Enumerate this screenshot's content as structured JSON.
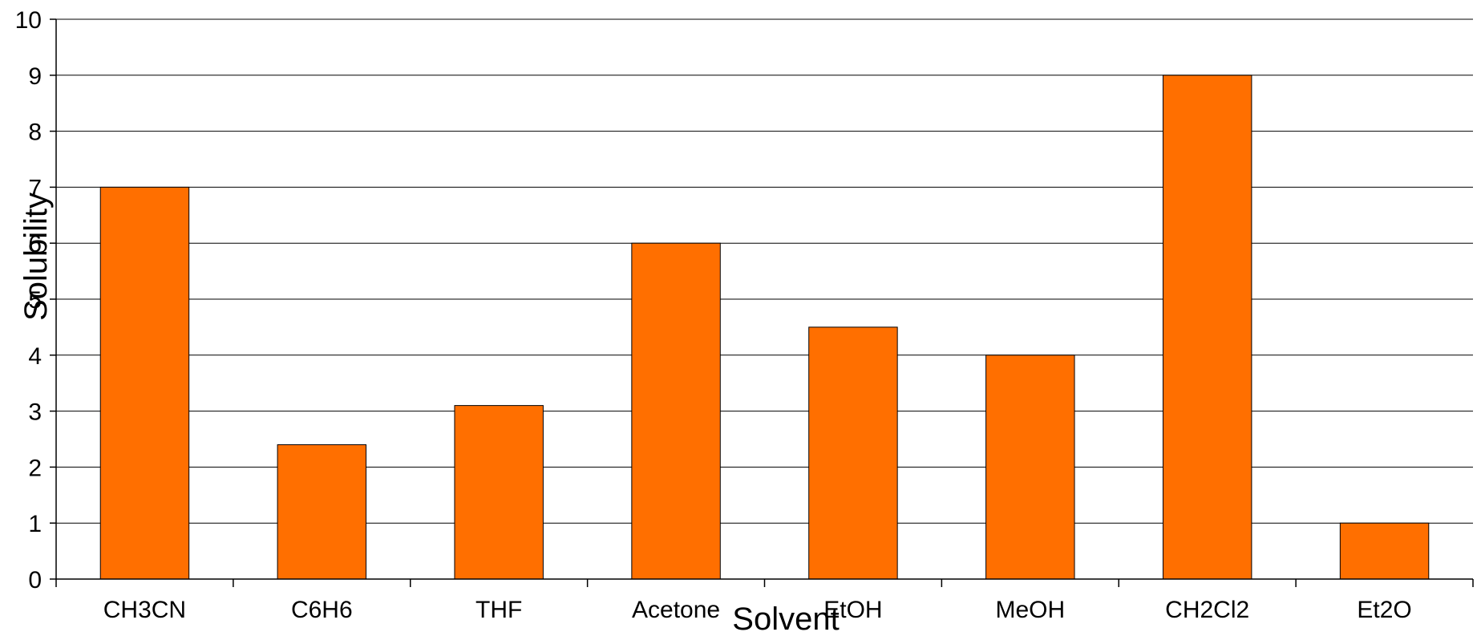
{
  "chart_data": {
    "type": "bar",
    "title": "",
    "xlabel": "Solvent",
    "ylabel": "Solubility",
    "categories": [
      "CH3CN",
      "C6H6",
      "THF",
      "Acetone",
      "EtOH",
      "MeOH",
      "CH2Cl2",
      "Et2O"
    ],
    "values": [
      7,
      2.4,
      3.1,
      6,
      4.5,
      4,
      9,
      1
    ],
    "ylim": [
      0,
      10
    ],
    "yticks": [
      0,
      1,
      2,
      3,
      4,
      5,
      6,
      7,
      8,
      9,
      10
    ],
    "grid": true,
    "legend": "none",
    "bar_color": "#FF6F00",
    "bar_edge_color": "#000000"
  }
}
